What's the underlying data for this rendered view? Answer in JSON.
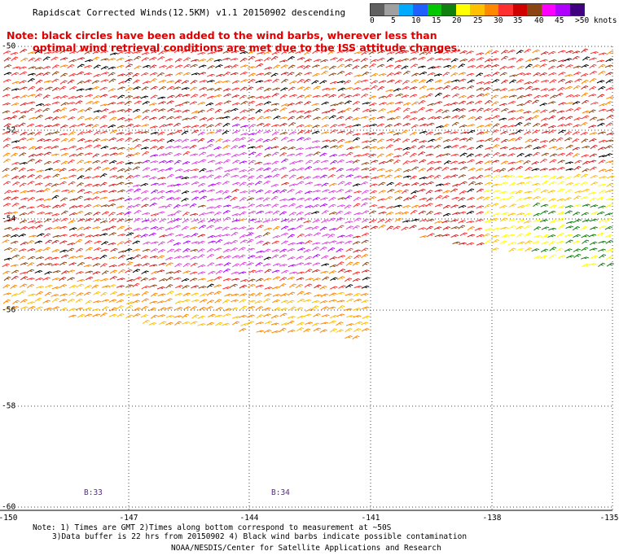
{
  "title": "Rapidscat Corrected Winds(12.5KM) v1.1 20150902 descending",
  "note_line1": "Note: black circles have been added to the wind barbs, wherever less than",
  "note_line2": "optimal wind retrieval conditions are met due to the ISS attitude changes.",
  "legend": {
    "colors": [
      "#606060",
      "#a0a0a0",
      "#00aaff",
      "#2060ff",
      "#00c800",
      "#108010",
      "#ffff00",
      "#ffc000",
      "#ff8800",
      "#ff3030",
      "#d00000",
      "#8b4513",
      "#ff00ff",
      "#b000ff",
      "#400080"
    ],
    "labels": [
      "0",
      "5",
      "10",
      "15",
      "20",
      "25",
      "30",
      "35",
      "40",
      "45",
      ">50 knots"
    ]
  },
  "map": {
    "lon_ticks": [
      "-150",
      "-147",
      "-144",
      "-141",
      "-138",
      "-135"
    ],
    "lat_ticks": [
      "-50",
      "-52",
      "-54",
      "-56",
      "-58",
      "-60"
    ],
    "block_labels": [
      "B:33",
      "B:34"
    ]
  },
  "footer": {
    "line1": "Note: 1) Times are GMT 2)Times along bottom correspond to measurement at ~50S",
    "line2": "3)Data buffer is 22 hrs from 20150902 4) Black wind barbs indicate possible contamination",
    "line3": "NOAA/NESDIS/Center for Satellite Applications and Research"
  }
}
